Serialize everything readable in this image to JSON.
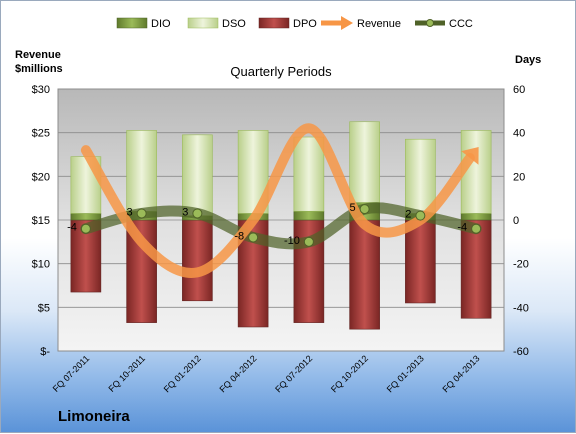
{
  "company": "Limoneira",
  "chart_data": {
    "type": "bar",
    "title": "Quarterly Periods",
    "left_axis_label": [
      "Revenue",
      "$millions"
    ],
    "right_axis_label": "Days",
    "left_axis": {
      "range": [
        0,
        30
      ],
      "ticks": [
        "$-",
        "$5",
        "$10",
        "$15",
        "$20",
        "$25",
        "$30"
      ]
    },
    "right_axis": {
      "range": [
        -60,
        60
      ],
      "ticks": [
        "-60",
        "-40",
        "-20",
        "0",
        "20",
        "40",
        "60"
      ]
    },
    "categories": [
      "FQ 07-2011",
      "FQ 10-2011",
      "FQ 01-2012",
      "FQ 04-2012",
      "FQ 07-2012",
      "FQ 10-2012",
      "FQ 01-2013",
      "FQ 04-2013"
    ],
    "grid": true,
    "legend_position": "top",
    "series": [
      {
        "name": "DIO",
        "axis": "right",
        "color": "#77933c",
        "values": [
          3,
          4,
          2,
          3,
          4,
          8,
          3,
          3
        ]
      },
      {
        "name": "DSO",
        "axis": "right",
        "color": "#d7e4bd",
        "values": [
          26,
          37,
          37,
          38,
          34,
          37,
          34,
          38
        ]
      },
      {
        "name": "DPO",
        "axis": "right",
        "color": "#943634",
        "values": [
          -33,
          -47,
          -37,
          -49,
          -47,
          -50,
          -38,
          -45
        ]
      },
      {
        "name": "Revenue",
        "axis": "left",
        "color": "#f79646",
        "values": [
          23,
          12.5,
          9,
          15,
          25.5,
          14.5,
          15,
          23
        ]
      },
      {
        "name": "CCC",
        "axis": "right",
        "color": "#4f6228",
        "values": [
          -4,
          3,
          3,
          -8,
          -10,
          5,
          2,
          -4
        ],
        "labels": [
          "-4",
          "3",
          "3",
          "-8",
          "-10",
          "5",
          "2",
          "-4"
        ]
      }
    ]
  }
}
